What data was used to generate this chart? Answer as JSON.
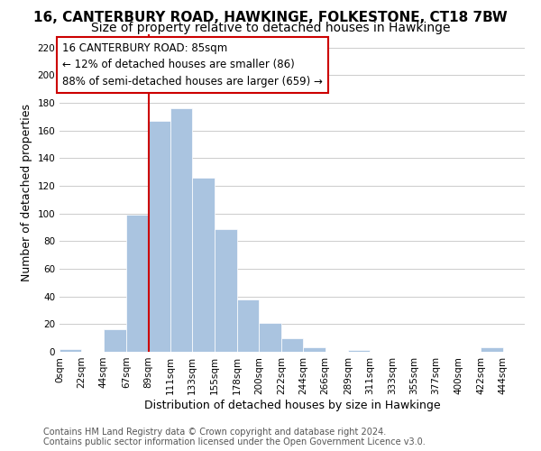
{
  "title": "16, CANTERBURY ROAD, HAWKINGE, FOLKESTONE, CT18 7BW",
  "subtitle": "Size of property relative to detached houses in Hawkinge",
  "xlabel": "Distribution of detached houses by size in Hawkinge",
  "ylabel": "Number of detached properties",
  "bar_left_edges": [
    0,
    22,
    44,
    67,
    89,
    111,
    133,
    155,
    178,
    200,
    222,
    244,
    266,
    289,
    311,
    333,
    355,
    377,
    400,
    422
  ],
  "bar_heights": [
    2,
    0,
    16,
    99,
    167,
    176,
    126,
    89,
    38,
    21,
    10,
    3,
    0,
    1,
    0,
    0,
    0,
    0,
    0,
    3
  ],
  "bar_widths": [
    22,
    22,
    23,
    22,
    22,
    22,
    22,
    23,
    22,
    22,
    22,
    22,
    23,
    22,
    22,
    22,
    22,
    23,
    22,
    22
  ],
  "bar_color": "#aac4e0",
  "bar_edge_color": "white",
  "vline_x": 89,
  "vline_color": "#cc0000",
  "xlim": [
    0,
    466
  ],
  "ylim": [
    0,
    230
  ],
  "yticks": [
    0,
    20,
    40,
    60,
    80,
    100,
    120,
    140,
    160,
    180,
    200,
    220
  ],
  "xtick_labels": [
    "0sqm",
    "22sqm",
    "44sqm",
    "67sqm",
    "89sqm",
    "111sqm",
    "133sqm",
    "155sqm",
    "178sqm",
    "200sqm",
    "222sqm",
    "244sqm",
    "266sqm",
    "289sqm",
    "311sqm",
    "333sqm",
    "355sqm",
    "377sqm",
    "400sqm",
    "422sqm",
    "444sqm"
  ],
  "xtick_positions": [
    0,
    22,
    44,
    67,
    89,
    111,
    133,
    155,
    178,
    200,
    222,
    244,
    266,
    289,
    311,
    333,
    355,
    377,
    400,
    422,
    444
  ],
  "annotation_title": "16 CANTERBURY ROAD: 85sqm",
  "annotation_line1": "← 12% of detached houses are smaller (86)",
  "annotation_line2": "88% of semi-detached houses are larger (659) →",
  "annotation_box_color": "white",
  "annotation_box_edge_color": "#cc0000",
  "footer_line1": "Contains HM Land Registry data © Crown copyright and database right 2024.",
  "footer_line2": "Contains public sector information licensed under the Open Government Licence v3.0.",
  "background_color": "white",
  "grid_color": "#cccccc",
  "title_fontsize": 11,
  "subtitle_fontsize": 10,
  "axis_label_fontsize": 9,
  "tick_fontsize": 7.5,
  "annotation_fontsize": 8.5,
  "footer_fontsize": 7.0
}
